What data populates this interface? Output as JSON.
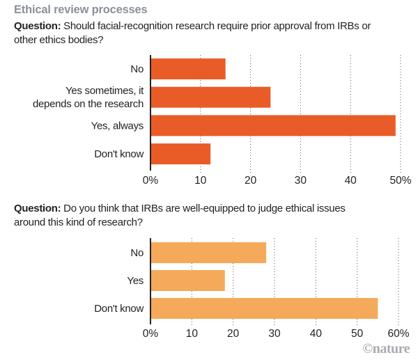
{
  "title": "Ethical review processes",
  "credit": "©nature",
  "chart_data": [
    {
      "type": "bar",
      "orientation": "horizontal",
      "question_label": "Question:",
      "question_text": " Should  facial-recognition research require prior approval from IRBs or other ethics bodies?",
      "categories": [
        [
          "No"
        ],
        [
          "Yes sometimes, it",
          "depends on the research"
        ],
        [
          "Yes, always"
        ],
        [
          "Don't know"
        ]
      ],
      "values": [
        15,
        24,
        49,
        12
      ],
      "unit": "%",
      "xlim": [
        0,
        50
      ],
      "xticks": [
        0,
        10,
        20,
        30,
        40,
        50
      ],
      "xtick_labels": [
        "0%",
        "10",
        "20",
        "30",
        "40",
        "50%"
      ],
      "color": "#E95C27",
      "grid": true
    },
    {
      "type": "bar",
      "orientation": "horizontal",
      "question_label": "Question:",
      "question_text": " Do you think that IRBs are well-equipped to judge ethical issues around this kind of research?",
      "categories": [
        [
          "No"
        ],
        [
          "Yes"
        ],
        [
          "Don't know"
        ]
      ],
      "values": [
        28,
        18,
        55
      ],
      "unit": "%",
      "xlim": [
        0,
        60
      ],
      "xticks": [
        0,
        10,
        20,
        30,
        40,
        50,
        60
      ],
      "xtick_labels": [
        "0%",
        "10",
        "20",
        "30",
        "40",
        "50",
        "60%"
      ],
      "color": "#F5A95A",
      "grid": true
    }
  ]
}
